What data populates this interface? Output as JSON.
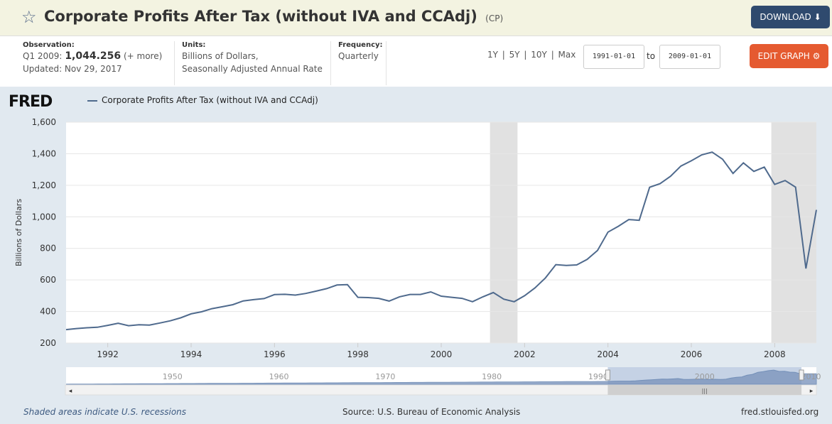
{
  "header": {
    "title": "Corporate Profits After Tax (without IVA and CCAdj)",
    "series_code": "(CP)",
    "download_label": "DOWNLOAD ⬇",
    "star_icon": "star-icon"
  },
  "meta": {
    "observation_label": "Observation:",
    "observation_period": "Q1 2009:",
    "observation_value": "1,044.256",
    "observation_more": "(+ more)",
    "updated": "Updated: Nov 29, 2017",
    "units_label": "Units:",
    "units_line1": "Billions of Dollars,",
    "units_line2": "Seasonally Adjusted Annual Rate",
    "frequency_label": "Frequency:",
    "frequency_value": "Quarterly"
  },
  "controls": {
    "ranges": "1Y | 5Y | 10Y | Max",
    "start_date": "1991-01-01",
    "to_label": "to",
    "end_date": "2009-01-01",
    "edit_label": "EDIT GRAPH ⚙"
  },
  "chart_data": {
    "type": "line",
    "title": "",
    "legend": [
      "Corporate Profits After Tax (without IVA and CCAdj)"
    ],
    "ylabel": "Billions of Dollars",
    "ylim": [
      200,
      1600
    ],
    "yticks": [
      200,
      400,
      600,
      800,
      1000,
      1200,
      1400,
      1600
    ],
    "ytick_labels": [
      "200",
      "400",
      "600",
      "800",
      "1,000",
      "1,200",
      "1,400",
      "1,600"
    ],
    "xlim": [
      1991.0,
      2009.0
    ],
    "xticks": [
      1992,
      1994,
      1996,
      1998,
      2000,
      2002,
      2004,
      2006,
      2008
    ],
    "line_color": "#4f6a8d",
    "recessions": [
      [
        2001.17,
        2001.83
      ],
      [
        2007.92,
        2009.0
      ]
    ],
    "series": [
      {
        "name": "Corporate Profits After Tax (without IVA and CCAdj)",
        "x": [
          1991.0,
          1991.25,
          1991.5,
          1991.75,
          1992.0,
          1992.25,
          1992.5,
          1992.75,
          1993.0,
          1993.25,
          1993.5,
          1993.75,
          1994.0,
          1994.25,
          1994.5,
          1994.75,
          1995.0,
          1995.25,
          1995.5,
          1995.75,
          1996.0,
          1996.25,
          1996.5,
          1996.75,
          1997.0,
          1997.25,
          1997.5,
          1997.75,
          1998.0,
          1998.25,
          1998.5,
          1998.75,
          1999.0,
          1999.25,
          1999.5,
          1999.75,
          2000.0,
          2000.25,
          2000.5,
          2000.75,
          2001.0,
          2001.25,
          2001.5,
          2001.75,
          2002.0,
          2002.25,
          2002.5,
          2002.75,
          2003.0,
          2003.25,
          2003.5,
          2003.75,
          2004.0,
          2004.25,
          2004.5,
          2004.75,
          2005.0,
          2005.25,
          2005.5,
          2005.75,
          2006.0,
          2006.25,
          2006.5,
          2006.75,
          2007.0,
          2007.25,
          2007.5,
          2007.75,
          2008.0,
          2008.25,
          2008.5,
          2008.75,
          2009.0
        ],
        "values": [
          285,
          292,
          297,
          300,
          312,
          325,
          310,
          316,
          314,
          327,
          341,
          360,
          385,
          398,
          418,
          430,
          443,
          467,
          475,
          482,
          507,
          509,
          504,
          514,
          529,
          545,
          568,
          570,
          490,
          488,
          483,
          466,
          493,
          508,
          508,
          524,
          497,
          490,
          483,
          462,
          493,
          520,
          478,
          462,
          500,
          550,
          613,
          697,
          692,
          695,
          730,
          787,
          903,
          940,
          983,
          978,
          1187,
          1210,
          1257,
          1322,
          1355,
          1393,
          1410,
          1365,
          1275,
          1342,
          1288,
          1315,
          1205,
          1230,
          1188,
          672,
          1044
        ]
      }
    ],
    "navigator": {
      "tick_labels": [
        "1950",
        "1960",
        "1970",
        "1980",
        "1990",
        "2000",
        "2010"
      ],
      "tick_years": [
        1950,
        1960,
        1970,
        1980,
        1990,
        2000,
        2010
      ]
    }
  },
  "footer": {
    "recession_note": "Shaded areas indicate U.S. recessions",
    "source": "Source: U.S. Bureau of Economic Analysis",
    "site": "fred.stlouisfed.org"
  },
  "logo": "FRED"
}
